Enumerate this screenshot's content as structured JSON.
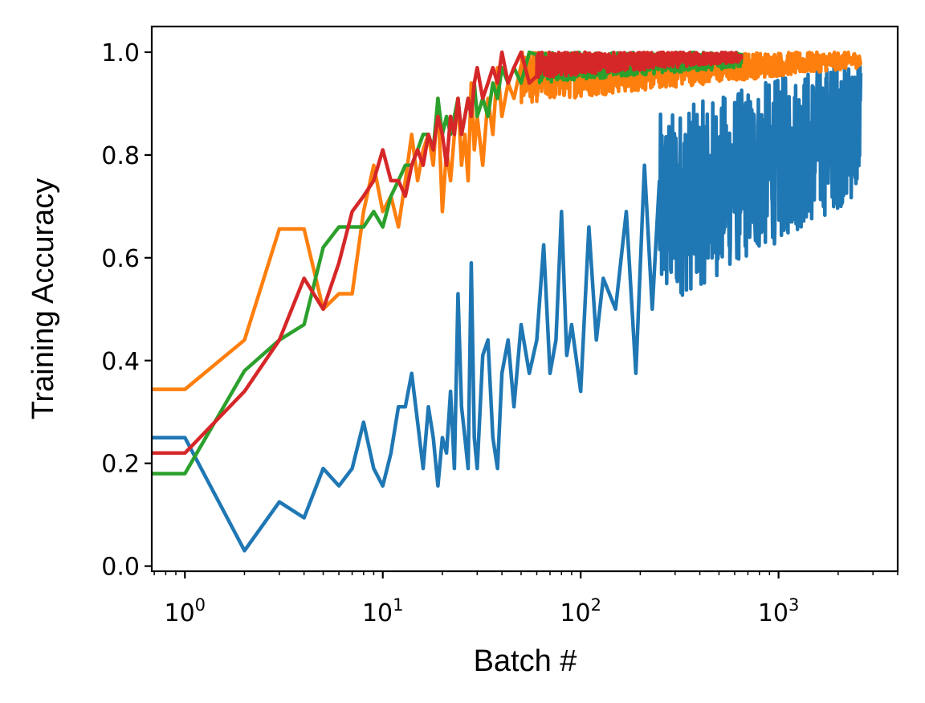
{
  "chart_data": {
    "type": "line",
    "title": "",
    "xlabel": "Batch #",
    "ylabel": "Training Accuracy",
    "xscale": "log",
    "xlim": [
      0.68,
      4000
    ],
    "ylim": [
      -0.01,
      1.05
    ],
    "grid": false,
    "legend": "none",
    "x_ticks": [
      {
        "value": 1,
        "base": "10",
        "exp": "0"
      },
      {
        "value": 10,
        "base": "10",
        "exp": "1"
      },
      {
        "value": 100,
        "base": "10",
        "exp": "2"
      },
      {
        "value": 1000,
        "base": "10",
        "exp": "3"
      }
    ],
    "y_ticks": [
      "0.0",
      "0.2",
      "0.4",
      "0.6",
      "0.8",
      "1.0"
    ],
    "series": [
      {
        "color": "#1f77b4",
        "points": [
          [
            0.68,
            0.25
          ],
          [
            1,
            0.25
          ],
          [
            2,
            0.03
          ],
          [
            3,
            0.125
          ],
          [
            4,
            0.094
          ],
          [
            5,
            0.19
          ],
          [
            6,
            0.156
          ],
          [
            7,
            0.19
          ],
          [
            8,
            0.28
          ],
          [
            9,
            0.19
          ],
          [
            10,
            0.156
          ],
          [
            11,
            0.22
          ],
          [
            12,
            0.31
          ],
          [
            13,
            0.31
          ],
          [
            14,
            0.375
          ],
          [
            15,
            0.28
          ],
          [
            16,
            0.19
          ],
          [
            17,
            0.31
          ],
          [
            18,
            0.25
          ],
          [
            19,
            0.156
          ],
          [
            20,
            0.25
          ],
          [
            21,
            0.22
          ],
          [
            22,
            0.34
          ],
          [
            23,
            0.19
          ],
          [
            24,
            0.53
          ],
          [
            25,
            0.31
          ],
          [
            26,
            0.25
          ],
          [
            27,
            0.19
          ],
          [
            28,
            0.59
          ],
          [
            29,
            0.25
          ],
          [
            30,
            0.19
          ],
          [
            32,
            0.41
          ],
          [
            34,
            0.44
          ],
          [
            36,
            0.25
          ],
          [
            38,
            0.19
          ],
          [
            40,
            0.375
          ],
          [
            43,
            0.44
          ],
          [
            46,
            0.31
          ],
          [
            50,
            0.47
          ],
          [
            55,
            0.375
          ],
          [
            60,
            0.44
          ],
          [
            65,
            0.625
          ],
          [
            70,
            0.375
          ],
          [
            75,
            0.44
          ],
          [
            80,
            0.69
          ],
          [
            85,
            0.41
          ],
          [
            90,
            0.47
          ],
          [
            100,
            0.34
          ],
          [
            110,
            0.66
          ],
          [
            120,
            0.44
          ],
          [
            130,
            0.56
          ],
          [
            150,
            0.5
          ],
          [
            170,
            0.69
          ],
          [
            190,
            0.375
          ],
          [
            210,
            0.78
          ],
          [
            230,
            0.5
          ],
          [
            250,
            0.78
          ],
          [
            280,
            0.56
          ],
          [
            300,
            0.875
          ],
          [
            340,
            0.625
          ],
          [
            380,
            0.875
          ],
          [
            420,
            0.56
          ],
          [
            470,
            0.84
          ],
          [
            520,
            0.66
          ],
          [
            580,
            0.875
          ],
          [
            650,
            0.625
          ],
          [
            720,
            0.91
          ],
          [
            800,
            0.69
          ],
          [
            900,
            0.94
          ],
          [
            1000,
            0.72
          ],
          [
            1100,
            0.97
          ],
          [
            1250,
            0.69
          ],
          [
            1400,
            0.94
          ],
          [
            1600,
            0.84
          ],
          [
            1800,
            1.0
          ],
          [
            2000,
            0.875
          ],
          [
            2200,
            0.97
          ],
          [
            2400,
            0.84
          ],
          [
            2600,
            0.96
          ]
        ],
        "noise": {
          "from": 250,
          "to": 2600,
          "lo": [
            0.5,
            0.72
          ],
          "hi": [
            0.88,
            1.0
          ]
        }
      },
      {
        "color": "#ff7f0e",
        "points": [
          [
            0.68,
            0.344
          ],
          [
            1,
            0.344
          ],
          [
            2,
            0.44
          ],
          [
            3,
            0.656
          ],
          [
            4,
            0.656
          ],
          [
            5,
            0.5
          ],
          [
            6,
            0.53
          ],
          [
            7,
            0.53
          ],
          [
            8,
            0.69
          ],
          [
            9,
            0.78
          ],
          [
            10,
            0.69
          ],
          [
            11,
            0.72
          ],
          [
            12,
            0.66
          ],
          [
            13,
            0.75
          ],
          [
            14,
            0.84
          ],
          [
            15,
            0.75
          ],
          [
            16,
            0.81
          ],
          [
            17,
            0.84
          ],
          [
            18,
            0.78
          ],
          [
            19,
            0.91
          ],
          [
            20,
            0.69
          ],
          [
            21,
            0.81
          ],
          [
            22,
            0.75
          ],
          [
            23,
            0.84
          ],
          [
            24,
            0.91
          ],
          [
            25,
            0.78
          ],
          [
            26,
            0.84
          ],
          [
            27,
            0.75
          ],
          [
            28,
            0.94
          ],
          [
            29,
            0.81
          ],
          [
            30,
            0.875
          ],
          [
            32,
            0.78
          ],
          [
            34,
            0.91
          ],
          [
            36,
            0.84
          ],
          [
            38,
            0.97
          ],
          [
            40,
            0.875
          ],
          [
            43,
            0.94
          ],
          [
            46,
            0.91
          ],
          [
            50,
            1.0
          ],
          [
            55,
            0.875
          ],
          [
            60,
            0.97
          ],
          [
            70,
            0.91
          ],
          [
            80,
            1.0
          ],
          [
            90,
            0.94
          ],
          [
            100,
            1.0
          ],
          [
            120,
            0.91
          ],
          [
            150,
            1.0
          ],
          [
            200,
            0.875
          ],
          [
            250,
            1.0
          ],
          [
            300,
            0.94
          ],
          [
            400,
            1.0
          ],
          [
            500,
            0.91
          ],
          [
            600,
            1.0
          ],
          [
            800,
            0.94
          ],
          [
            1000,
            1.0
          ],
          [
            1300,
            0.91
          ],
          [
            1600,
            1.0
          ],
          [
            2000,
            0.94
          ],
          [
            2300,
            1.0
          ],
          [
            2600,
            0.97
          ]
        ],
        "noise": {
          "from": 50,
          "to": 2600,
          "lo": [
            0.9,
            0.97
          ],
          "hi": [
            1.0,
            1.0
          ]
        }
      },
      {
        "color": "#2ca02c",
        "points": [
          [
            0.68,
            0.18
          ],
          [
            1,
            0.18
          ],
          [
            2,
            0.38
          ],
          [
            3,
            0.44
          ],
          [
            4,
            0.47
          ],
          [
            5,
            0.62
          ],
          [
            6,
            0.66
          ],
          [
            7,
            0.66
          ],
          [
            8,
            0.66
          ],
          [
            9,
            0.69
          ],
          [
            10,
            0.66
          ],
          [
            11,
            0.72
          ],
          [
            12,
            0.75
          ],
          [
            13,
            0.78
          ],
          [
            14,
            0.78
          ],
          [
            15,
            0.81
          ],
          [
            16,
            0.84
          ],
          [
            17,
            0.84
          ],
          [
            18,
            0.81
          ],
          [
            19,
            0.91
          ],
          [
            20,
            0.84
          ],
          [
            21,
            0.875
          ],
          [
            22,
            0.84
          ],
          [
            23,
            0.875
          ],
          [
            24,
            0.91
          ],
          [
            25,
            0.84
          ],
          [
            26,
            0.875
          ],
          [
            27,
            0.91
          ],
          [
            28,
            0.875
          ],
          [
            29,
            0.94
          ],
          [
            30,
            0.875
          ],
          [
            32,
            0.91
          ],
          [
            34,
            0.875
          ],
          [
            36,
            0.94
          ],
          [
            38,
            0.91
          ],
          [
            40,
            0.97
          ],
          [
            43,
            0.94
          ],
          [
            46,
            0.97
          ],
          [
            50,
            0.94
          ],
          [
            55,
            1.0
          ],
          [
            60,
            0.94
          ],
          [
            70,
            1.0
          ],
          [
            80,
            0.97
          ],
          [
            100,
            1.0
          ],
          [
            130,
            0.97
          ],
          [
            170,
            1.0
          ],
          [
            220,
            0.97
          ],
          [
            300,
            1.0
          ],
          [
            400,
            0.97
          ],
          [
            500,
            1.0
          ],
          [
            600,
            0.97
          ],
          [
            650,
            1.0
          ]
        ],
        "noise": {
          "from": 60,
          "to": 650,
          "lo": [
            0.94,
            0.97
          ],
          "hi": [
            1.0,
            1.0
          ]
        }
      },
      {
        "color": "#d62728",
        "points": [
          [
            0.68,
            0.22
          ],
          [
            1,
            0.22
          ],
          [
            2,
            0.34
          ],
          [
            3,
            0.44
          ],
          [
            4,
            0.56
          ],
          [
            5,
            0.5
          ],
          [
            6,
            0.59
          ],
          [
            7,
            0.69
          ],
          [
            8,
            0.72
          ],
          [
            9,
            0.75
          ],
          [
            10,
            0.81
          ],
          [
            11,
            0.75
          ],
          [
            12,
            0.75
          ],
          [
            13,
            0.72
          ],
          [
            14,
            0.78
          ],
          [
            15,
            0.81
          ],
          [
            16,
            0.78
          ],
          [
            17,
            0.84
          ],
          [
            18,
            0.81
          ],
          [
            19,
            0.875
          ],
          [
            20,
            0.84
          ],
          [
            21,
            0.78
          ],
          [
            22,
            0.875
          ],
          [
            23,
            0.84
          ],
          [
            24,
            0.91
          ],
          [
            25,
            0.84
          ],
          [
            26,
            0.875
          ],
          [
            27,
            0.91
          ],
          [
            28,
            0.875
          ],
          [
            29,
            0.94
          ],
          [
            30,
            0.97
          ],
          [
            32,
            0.91
          ],
          [
            34,
            0.94
          ],
          [
            36,
            0.97
          ],
          [
            38,
            0.94
          ],
          [
            40,
            1.0
          ],
          [
            43,
            0.94
          ],
          [
            46,
            0.97
          ],
          [
            50,
            1.0
          ],
          [
            55,
            0.94
          ],
          [
            60,
            1.0
          ],
          [
            70,
            0.97
          ],
          [
            80,
            1.0
          ],
          [
            100,
            0.97
          ],
          [
            130,
            1.0
          ],
          [
            170,
            0.97
          ],
          [
            220,
            1.0
          ],
          [
            300,
            0.97
          ],
          [
            400,
            1.0
          ],
          [
            500,
            0.97
          ],
          [
            600,
            1.0
          ],
          [
            650,
            1.0
          ]
        ],
        "noise": {
          "from": 60,
          "to": 650,
          "lo": [
            0.95,
            0.98
          ],
          "hi": [
            1.0,
            1.0
          ]
        }
      }
    ]
  }
}
